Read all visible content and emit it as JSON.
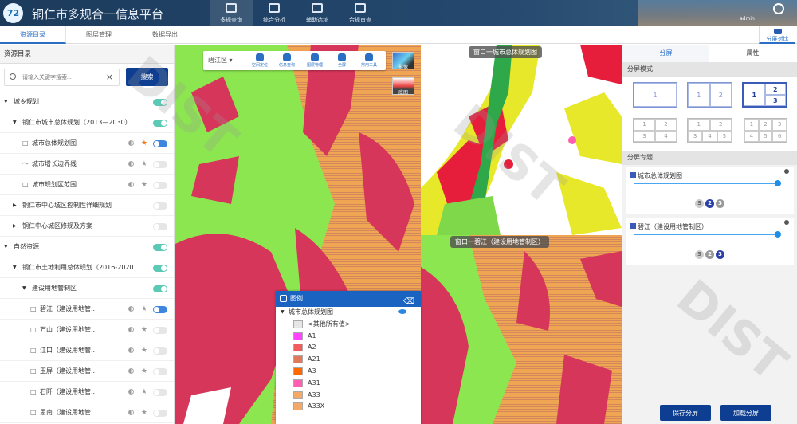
{
  "header": {
    "logo": "72",
    "title": "铜仁市多规合一信息平台",
    "nav": [
      {
        "label": "多规查询",
        "active": true
      },
      {
        "label": "综合分析"
      },
      {
        "label": "辅助选址"
      },
      {
        "label": "合规审查"
      }
    ],
    "user": "admin"
  },
  "tabs": [
    {
      "label": "资源目录",
      "active": true
    },
    {
      "label": "图层管理"
    },
    {
      "label": "数据导出"
    }
  ],
  "split_compare": "分屏对比",
  "sidebar": {
    "title": "资源目录",
    "search_placeholder": "请输入关键字搜索...",
    "search_button": "搜索",
    "tree": [
      {
        "label": "城乡规划",
        "level": 0,
        "toggle": "teal"
      },
      {
        "label": "铜仁市城市总体规划（2013—2030）",
        "level": 1,
        "toggle": "teal"
      },
      {
        "label": "城市总体规划图",
        "level": 2,
        "icon": "polygon",
        "star": true,
        "toggle": "on"
      },
      {
        "label": "城市增长边界线",
        "level": 2,
        "icon": "line",
        "toggle": "off"
      },
      {
        "label": "城市规划区范围",
        "level": 2,
        "icon": "polygon",
        "toggle": "off"
      },
      {
        "label": "铜仁市中心城区控制性详细规划",
        "level": 1,
        "collapsed": true,
        "toggle": "off"
      },
      {
        "label": "铜仁中心城区修规及方案",
        "level": 1,
        "collapsed": true,
        "toggle": "off"
      },
      {
        "label": "自然资源",
        "level": 0,
        "toggle": "teal"
      },
      {
        "label": "铜仁市土地利用总体规划（2016-2020...",
        "level": 1,
        "toggle": "teal"
      },
      {
        "label": "建设用地管制区",
        "level": 2,
        "toggle": "teal"
      },
      {
        "label": "碧江（建设用地管...",
        "level": 3,
        "icon": "polygon",
        "toggle": "on"
      },
      {
        "label": "万山（建设用地管...",
        "level": 3,
        "icon": "polygon",
        "toggle": "off"
      },
      {
        "label": "江口（建设用地管...",
        "level": 3,
        "icon": "polygon",
        "toggle": "off"
      },
      {
        "label": "玉屏（建设用地管...",
        "level": 3,
        "icon": "polygon",
        "toggle": "off"
      },
      {
        "label": "石阡（建设用地管...",
        "level": 3,
        "icon": "polygon",
        "toggle": "off"
      },
      {
        "label": "思南（建设用地管...",
        "level": 3,
        "icon": "polygon",
        "toggle": "off"
      }
    ]
  },
  "map": {
    "region": "碧江区",
    "tools": [
      "空间定位",
      "信息查询",
      "图层管理",
      "全屏",
      "常用工具"
    ],
    "basemaps": [
      "影像",
      "底图"
    ],
    "window_top": "窗口一城市总体规划图",
    "window_bottom": "窗口一碧江（建设用地管制区）"
  },
  "legend": {
    "title": "图例",
    "layer": "城市总体规划图",
    "items": [
      {
        "label": "<其他所有值>",
        "color": "#e6e6e6"
      },
      {
        "label": "A1",
        "color": "#ff44ff"
      },
      {
        "label": "A2",
        "color": "#f25c5c"
      },
      {
        "label": "A21",
        "color": "#e07a5a"
      },
      {
        "label": "A3",
        "color": "#ff6a00"
      },
      {
        "label": "A31",
        "color": "#ff5fb0"
      },
      {
        "label": "A33",
        "color": "#f5a868"
      },
      {
        "label": "A33X",
        "color": "#f5a868"
      }
    ]
  },
  "right": {
    "tabs": [
      "分屏",
      "属性"
    ],
    "mode_title": "分屏模式",
    "topic_title": "分屏专题",
    "topics": [
      {
        "label": "城市总体规划图",
        "opacity": 1.0,
        "screens": [
          "S",
          "2",
          "3"
        ],
        "active": "2"
      },
      {
        "label": "碧江（建设用地管制区）",
        "opacity": 1.0,
        "screens": [
          "S",
          "2",
          "3"
        ],
        "active": "3"
      }
    ],
    "save": "保存分屏",
    "load": "加载分屏"
  },
  "watermark": "DIST"
}
